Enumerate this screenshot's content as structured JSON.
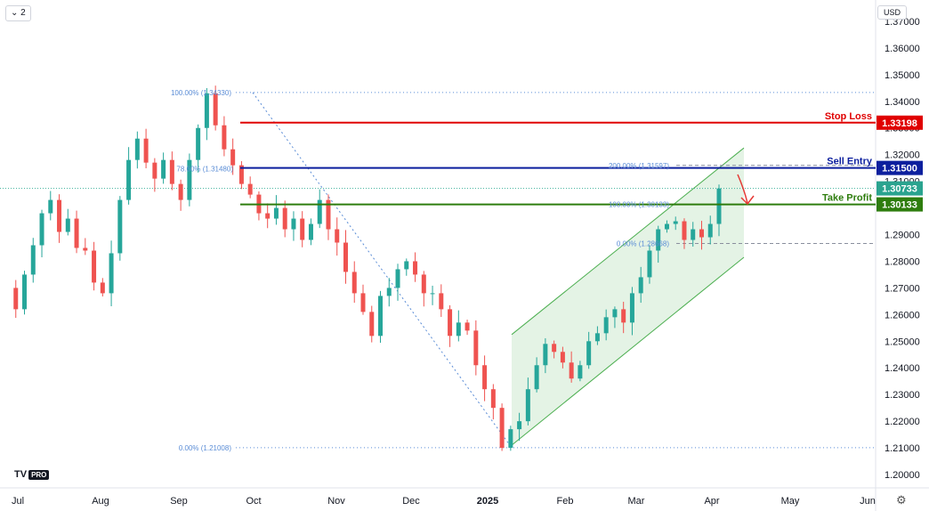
{
  "toolbar": {
    "interval_button": "⌄ 2",
    "currency": "USD"
  },
  "logo": {
    "mark": "TV",
    "badge": "PRO"
  },
  "chart_data": {
    "type": "candlestick",
    "title": "",
    "xlabel": "",
    "ylabel": "",
    "ylim": [
      1.195,
      1.378
    ],
    "y_ticks": [
      "1.37000",
      "1.36000",
      "1.35000",
      "1.34000",
      "1.33000",
      "1.32000",
      "1.31000",
      "1.30000",
      "1.29000",
      "1.28000",
      "1.27000",
      "1.26000",
      "1.25000",
      "1.24000",
      "1.23000",
      "1.22000",
      "1.21000",
      "1.20000"
    ],
    "x_ticks": [
      "Jul",
      "Aug",
      "Sep",
      "Oct",
      "Nov",
      "Dec",
      "2025",
      "Feb",
      "Mar",
      "Apr",
      "May",
      "Jun"
    ],
    "last_price": 1.30733,
    "price_path": [
      1.27,
      1.262,
      1.275,
      1.286,
      1.298,
      1.303,
      1.291,
      1.296,
      1.285,
      1.284,
      1.272,
      1.268,
      1.283,
      1.303,
      1.318,
      1.326,
      1.317,
      1.311,
      1.318,
      1.309,
      1.303,
      1.318,
      1.33,
      1.343,
      1.331,
      1.322,
      1.316,
      1.309,
      1.305,
      1.298,
      1.296,
      1.3,
      1.292,
      1.296,
      1.288,
      1.294,
      1.303,
      1.292,
      1.287,
      1.276,
      1.268,
      1.261,
      1.252,
      1.267,
      1.27,
      1.277,
      1.28,
      1.275,
      1.268,
      1.268,
      1.262,
      1.252,
      1.257,
      1.254,
      1.241,
      1.232,
      1.225,
      1.21,
      1.217,
      1.22,
      1.232,
      1.241,
      1.249,
      1.246,
      1.242,
      1.236,
      1.241,
      1.25,
      1.253,
      1.259,
      1.262,
      1.257,
      1.268,
      1.274,
      1.284,
      1.292,
      1.294,
      1.295,
      1.288,
      1.292,
      1.289,
      1.294,
      1.3073
    ],
    "levels": [
      {
        "name": "Stop Loss",
        "value": 1.33198,
        "value_label": "1.33198",
        "color": "#e00000"
      },
      {
        "name": "Sell Entry",
        "value": 1.315,
        "value_label": "1.31500",
        "color": "#0c1f9e"
      },
      {
        "name": "Take Profit",
        "value": 1.30133,
        "value_label": "1.30133",
        "color": "#2e7d0e"
      }
    ],
    "fib_labels": [
      {
        "text": "100.00% (1.34330)",
        "value": 1.3433
      },
      {
        "text": "0.00% (1.21008)",
        "value": 1.21008
      },
      {
        "text": "200.00% (1.31597)",
        "value": 1.31597
      },
      {
        "text": "100.00% (1.30133)",
        "value": 1.30133
      },
      {
        "text": "0.00% (1.28668)",
        "value": 1.28668
      },
      {
        "text": "78.60% (1.31480)",
        "value": 1.3148
      }
    ],
    "current_price_label": "1.30733",
    "channel": {
      "description": "rising parallel channel from mid-January to mid-April"
    }
  }
}
